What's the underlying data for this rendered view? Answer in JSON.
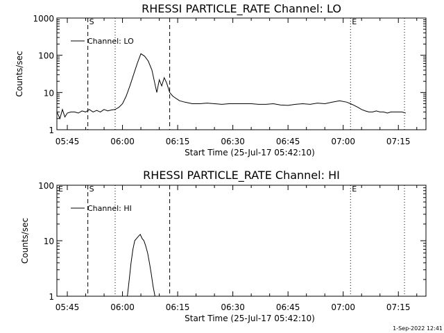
{
  "chart_data": [
    {
      "type": "line",
      "title": "RHESSI PARTICLE_RATE Channel: LO",
      "xlabel": "Start Time (25-Jul-17 05:42:10)",
      "ylabel": "Counts/sec",
      "yscale": "log",
      "ylim": [
        1,
        1000
      ],
      "xlim": [
        "05:42:10",
        "07:22:30"
      ],
      "x_ticks": [
        "05:45",
        "06:00",
        "06:15",
        "06:30",
        "06:45",
        "07:00",
        "07:15"
      ],
      "y_ticks": [
        "1",
        "10",
        "100",
        "1000"
      ],
      "legend": {
        "label": "Channel: LO",
        "placement": "top-left"
      },
      "markers": [
        {
          "label": "S",
          "time": "05:50:35",
          "style": "dashed"
        },
        {
          "label": "",
          "time": "05:58:00",
          "style": "dotted"
        },
        {
          "label": "",
          "time": "06:12:50",
          "style": "dashed"
        },
        {
          "label": "E",
          "time": "07:02:00",
          "style": "dotted"
        },
        {
          "label": "",
          "time": "07:16:40",
          "style": "dotted"
        }
      ],
      "series": [
        {
          "name": "Channel: LO",
          "x": [
            "05:42:10",
            "05:43:00",
            "05:43:40",
            "05:44:20",
            "05:45:00",
            "05:46:00",
            "05:47:00",
            "05:48:00",
            "05:49:00",
            "05:50:00",
            "05:51:00",
            "05:52:00",
            "05:53:00",
            "05:54:00",
            "05:55:00",
            "05:56:00",
            "05:57:00",
            "05:58:00",
            "05:59:00",
            "06:00:00",
            "06:01:00",
            "06:02:00",
            "06:03:00",
            "06:04:00",
            "06:05:00",
            "06:06:00",
            "06:07:00",
            "06:08:00",
            "06:08:40",
            "06:09:20",
            "06:10:00",
            "06:10:40",
            "06:11:20",
            "06:12:00",
            "06:12:50",
            "06:13:40",
            "06:14:30",
            "06:15:30",
            "06:17:00",
            "06:19:00",
            "06:21:00",
            "06:23:00",
            "06:25:00",
            "06:27:00",
            "06:29:00",
            "06:31:00",
            "06:33:00",
            "06:35:00",
            "06:37:00",
            "06:39:00",
            "06:41:00",
            "06:43:00",
            "06:45:00",
            "06:47:00",
            "06:49:00",
            "06:51:00",
            "06:53:00",
            "06:55:00",
            "06:57:00",
            "06:59:00",
            "07:01:00",
            "07:02:00",
            "07:03:00",
            "07:04:00",
            "07:05:00",
            "07:06:00",
            "07:07:00",
            "07:08:00",
            "07:09:00",
            "07:10:00",
            "07:11:00",
            "07:12:00",
            "07:13:00",
            "07:14:00",
            "07:15:00",
            "07:16:00",
            "07:17:00"
          ],
          "y": [
            3.0,
            2.0,
            3.5,
            2.2,
            2.8,
            3.0,
            3.0,
            2.8,
            3.2,
            3.0,
            3.5,
            3.0,
            3.3,
            3.0,
            3.5,
            3.2,
            3.4,
            3.5,
            4.0,
            5.0,
            8.0,
            15.0,
            30.0,
            60.0,
            110.0,
            95.0,
            70.0,
            40.0,
            20.0,
            10.0,
            22.0,
            15.0,
            25.0,
            18.0,
            10.0,
            8.0,
            7.0,
            6.0,
            5.5,
            5.0,
            5.0,
            5.2,
            5.0,
            4.8,
            5.0,
            5.0,
            5.0,
            5.0,
            4.8,
            4.8,
            5.0,
            4.6,
            4.5,
            4.8,
            5.0,
            4.8,
            5.2,
            5.0,
            5.5,
            6.0,
            5.5,
            5.0,
            4.5,
            4.0,
            3.5,
            3.2,
            3.0,
            3.0,
            3.2,
            3.0,
            3.0,
            2.8,
            3.0,
            3.0,
            3.0,
            3.0,
            2.8
          ]
        }
      ]
    },
    {
      "type": "line",
      "title": "RHESSI PARTICLE_RATE Channel: HI",
      "xlabel": "Start Time (25-Jul-17 05:42:10)",
      "ylabel": "Counts/sec",
      "yscale": "log",
      "ylim": [
        1,
        100
      ],
      "xlim": [
        "05:42:10",
        "07:22:30"
      ],
      "x_ticks": [
        "05:45",
        "06:00",
        "06:15",
        "06:30",
        "06:45",
        "07:00",
        "07:15"
      ],
      "y_ticks": [
        "1",
        "10",
        "100"
      ],
      "legend": {
        "label": "Channel: HI",
        "placement": "top-left"
      },
      "markers": [
        {
          "label": "E",
          "time": "05:42:10",
          "style": "none"
        },
        {
          "label": "S",
          "time": "05:50:35",
          "style": "dashed"
        },
        {
          "label": "",
          "time": "05:58:00",
          "style": "dotted"
        },
        {
          "label": "",
          "time": "06:12:50",
          "style": "dashed"
        },
        {
          "label": "E",
          "time": "07:02:00",
          "style": "dotted"
        },
        {
          "label": "",
          "time": "07:16:40",
          "style": "dotted"
        }
      ],
      "series": [
        {
          "name": "Channel: HI",
          "x": [
            "06:01:20",
            "06:01:50",
            "06:02:20",
            "06:02:50",
            "06:03:20",
            "06:03:50",
            "06:04:20",
            "06:04:50",
            "06:05:20",
            "06:05:50",
            "06:06:20",
            "06:06:50",
            "06:07:20",
            "06:07:50",
            "06:08:20",
            "06:08:50"
          ],
          "y": [
            1.0,
            2.0,
            4.0,
            7.0,
            10.0,
            11.0,
            12.0,
            13.0,
            11.0,
            10.0,
            8.0,
            6.0,
            4.0,
            2.5,
            1.5,
            1.0
          ]
        }
      ]
    }
  ],
  "timestamp": "1-Sep-2022 12:41"
}
